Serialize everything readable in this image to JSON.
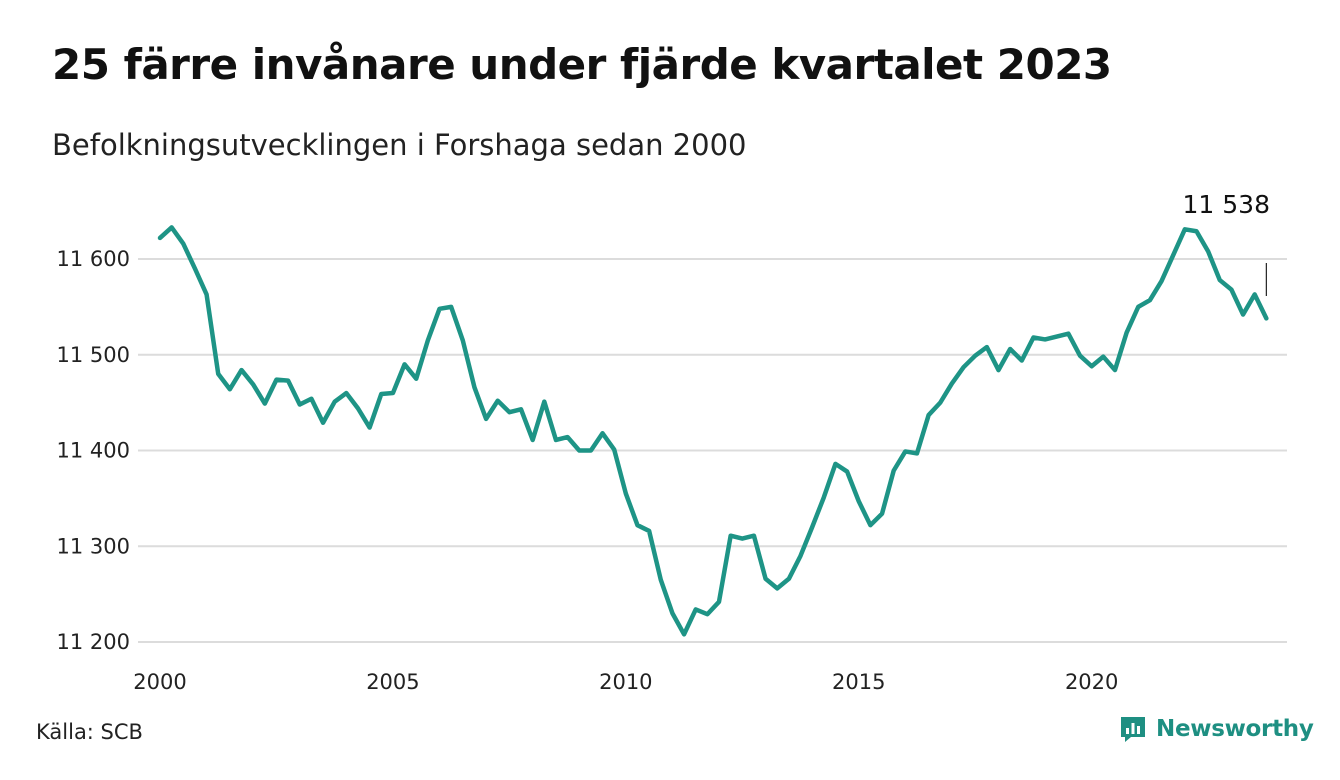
{
  "header": {
    "title": "25 färre invånare under fjärde kvartalet 2023",
    "subtitle": "Befolkningsutvecklingen i Forshaga sedan 2000"
  },
  "footer": {
    "source": "Källa: SCB",
    "brand_name": "Newsworthy",
    "brand_icon": "bar-chart-speech-bubble-icon"
  },
  "colors": {
    "line": "#1e9486",
    "grid": "#dcdcdc",
    "brand": "#1e8f82"
  },
  "chart_data": {
    "type": "line",
    "title": "25 färre invånare under fjärde kvartalet 2023",
    "subtitle": "Befolkningsutvecklingen i Forshaga sedan 2000",
    "xlabel": "",
    "ylabel": "",
    "xlim": [
      2000,
      2024
    ],
    "ylim": [
      11200,
      11650
    ],
    "y_ticks": [
      11200,
      11300,
      11400,
      11500,
      11600
    ],
    "y_tick_labels": [
      "11 200",
      "11 300",
      "11 400",
      "11 500",
      "11 600"
    ],
    "x_ticks": [
      2000,
      2005,
      2010,
      2015,
      2020
    ],
    "x_tick_labels": [
      "2000",
      "2005",
      "2010",
      "2015",
      "2020"
    ],
    "grid": "horizontal",
    "legend": "none",
    "last_value_label": "11 538",
    "series": [
      {
        "x": [
          "2000-Q1",
          "2000-Q2",
          "2000-Q3",
          "2000-Q4",
          "2001-Q1",
          "2001-Q2",
          "2001-Q3",
          "2001-Q4",
          "2002-Q1",
          "2002-Q2",
          "2002-Q3",
          "2002-Q4",
          "2003-Q1",
          "2003-Q2",
          "2003-Q3",
          "2003-Q4",
          "2004-Q1",
          "2004-Q2",
          "2004-Q3",
          "2004-Q4",
          "2005-Q1",
          "2005-Q2",
          "2005-Q3",
          "2005-Q4",
          "2006-Q1",
          "2006-Q2",
          "2006-Q3",
          "2006-Q4",
          "2007-Q1",
          "2007-Q2",
          "2007-Q3",
          "2007-Q4",
          "2008-Q1",
          "2008-Q2",
          "2008-Q3",
          "2008-Q4",
          "2009-Q1",
          "2009-Q2",
          "2009-Q3",
          "2009-Q4",
          "2010-Q1",
          "2010-Q2",
          "2010-Q3",
          "2010-Q4",
          "2011-Q1",
          "2011-Q2",
          "2011-Q3",
          "2011-Q4",
          "2012-Q1",
          "2012-Q2",
          "2012-Q3",
          "2012-Q4",
          "2013-Q1",
          "2013-Q2",
          "2013-Q3",
          "2013-Q4",
          "2014-Q1",
          "2014-Q2",
          "2014-Q3",
          "2014-Q4",
          "2015-Q1",
          "2015-Q2",
          "2015-Q3",
          "2015-Q4",
          "2016-Q1",
          "2016-Q2",
          "2016-Q3",
          "2016-Q4",
          "2017-Q1",
          "2017-Q2",
          "2017-Q3",
          "2017-Q4",
          "2018-Q1",
          "2018-Q2",
          "2018-Q3",
          "2018-Q4",
          "2019-Q1",
          "2019-Q2",
          "2019-Q3",
          "2019-Q4",
          "2020-Q1",
          "2020-Q2",
          "2020-Q3",
          "2020-Q4",
          "2021-Q1",
          "2021-Q2",
          "2021-Q3",
          "2021-Q4",
          "2022-Q1",
          "2022-Q2",
          "2022-Q3",
          "2022-Q4",
          "2023-Q1",
          "2023-Q2",
          "2023-Q3",
          "2023-Q4"
        ],
        "values": [
          11622,
          11633,
          11616,
          11590,
          11563,
          11480,
          11464,
          11484,
          11469,
          11449,
          11474,
          11473,
          11448,
          11454,
          11429,
          11451,
          11460,
          11444,
          11424,
          11459,
          11460,
          11490,
          11475,
          11515,
          11548,
          11550,
          11515,
          11466,
          11433,
          11452,
          11440,
          11443,
          11411,
          11451,
          11411,
          11414,
          11400,
          11400,
          11418,
          11401,
          11355,
          11322,
          11316,
          11265,
          11230,
          11208,
          11234,
          11229,
          11242,
          11311,
          11308,
          11311,
          11266,
          11256,
          11266,
          11290,
          11320,
          11351,
          11386,
          11378,
          11347,
          11322,
          11334,
          11379,
          11399,
          11397,
          11437,
          11450,
          11470,
          11487,
          11499,
          11508,
          11484,
          11506,
          11494,
          11518,
          11516,
          11519,
          11522,
          11499,
          11488,
          11498,
          11484,
          11523,
          11550,
          11557,
          11577,
          11604,
          11631,
          11629,
          11608,
          11578,
          11568,
          11542,
          11563,
          11538
        ]
      }
    ]
  }
}
